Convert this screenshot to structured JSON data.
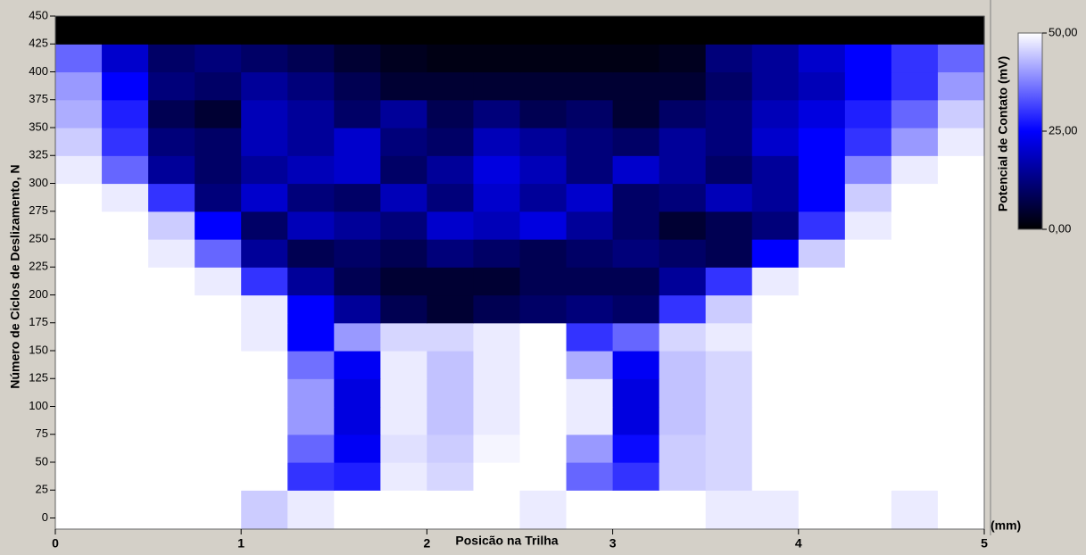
{
  "chart_data": {
    "type": "heatmap",
    "xlabel": "Posicão na Trilha",
    "xunit": "(mm)",
    "ylabel": "Número de Ciclos de Deslizamento, N",
    "colorbar_label": "Potencial de Contato (mV)",
    "x_edges": [
      0,
      0.25,
      0.5,
      0.75,
      1,
      1.25,
      1.5,
      1.75,
      2,
      2.25,
      2.5,
      2.75,
      3,
      3.25,
      3.5,
      3.75,
      4,
      4.25,
      4.5,
      4.75,
      5
    ],
    "y_edges": [
      -10,
      25,
      50,
      75,
      100,
      125,
      150,
      175,
      200,
      225,
      250,
      275,
      300,
      325,
      350,
      375,
      400,
      425,
      450
    ],
    "values": [
      [
        50,
        50,
        50,
        50,
        45,
        48,
        50,
        50,
        50,
        50,
        48,
        50,
        50,
        50,
        48,
        48,
        50,
        50,
        48,
        50
      ],
      [
        50,
        50,
        50,
        50,
        50,
        30,
        28,
        48,
        46,
        50,
        50,
        35,
        30,
        45,
        46,
        50,
        50,
        50,
        50,
        50
      ],
      [
        50,
        50,
        50,
        50,
        50,
        35,
        24,
        47,
        45,
        49,
        50,
        40,
        26,
        45,
        46,
        50,
        50,
        50,
        50,
        50
      ],
      [
        50,
        50,
        50,
        50,
        50,
        40,
        22,
        48,
        44,
        48,
        50,
        48,
        22,
        44,
        46,
        50,
        50,
        50,
        50,
        50
      ],
      [
        50,
        50,
        50,
        50,
        50,
        40,
        22,
        48,
        44,
        48,
        50,
        48,
        22,
        44,
        46,
        50,
        50,
        50,
        50,
        50
      ],
      [
        50,
        50,
        50,
        50,
        50,
        36,
        24,
        48,
        44,
        48,
        50,
        42,
        24,
        44,
        46,
        50,
        50,
        50,
        50,
        50
      ],
      [
        50,
        50,
        50,
        50,
        48,
        25,
        40,
        46,
        46,
        48,
        50,
        30,
        35,
        46,
        48,
        50,
        50,
        50,
        50,
        50
      ],
      [
        50,
        50,
        50,
        50,
        48,
        25,
        15,
        8,
        5,
        8,
        10,
        12,
        10,
        30,
        45,
        50,
        50,
        50,
        50,
        50
      ],
      [
        50,
        50,
        50,
        48,
        30,
        15,
        8,
        5,
        5,
        5,
        8,
        8,
        8,
        15,
        30,
        48,
        50,
        50,
        50,
        50
      ],
      [
        50,
        50,
        48,
        35,
        15,
        8,
        10,
        8,
        12,
        10,
        8,
        10,
        12,
        10,
        8,
        25,
        45,
        50,
        50,
        50
      ],
      [
        50,
        50,
        45,
        25,
        10,
        18,
        15,
        12,
        20,
        18,
        22,
        15,
        10,
        5,
        8,
        12,
        30,
        48,
        50,
        50
      ],
      [
        50,
        48,
        30,
        12,
        20,
        12,
        10,
        18,
        12,
        20,
        15,
        20,
        10,
        12,
        18,
        15,
        25,
        45,
        50,
        50
      ],
      [
        48,
        35,
        15,
        10,
        15,
        18,
        20,
        10,
        15,
        22,
        18,
        12,
        20,
        15,
        10,
        15,
        25,
        38,
        48,
        50
      ],
      [
        45,
        30,
        12,
        10,
        18,
        15,
        20,
        12,
        10,
        18,
        15,
        12,
        10,
        15,
        12,
        20,
        25,
        30,
        40,
        48
      ],
      [
        42,
        28,
        8,
        5,
        18,
        15,
        10,
        15,
        8,
        12,
        8,
        10,
        5,
        10,
        12,
        18,
        22,
        28,
        35,
        45
      ],
      [
        40,
        25,
        12,
        10,
        15,
        12,
        8,
        5,
        5,
        5,
        5,
        5,
        5,
        5,
        10,
        15,
        18,
        25,
        30,
        40
      ],
      [
        35,
        20,
        10,
        12,
        10,
        8,
        5,
        3,
        2,
        2,
        2,
        2,
        2,
        3,
        12,
        15,
        20,
        25,
        30,
        35
      ],
      [
        0,
        0,
        0,
        0,
        0,
        0,
        0,
        0,
        0,
        0,
        0,
        0,
        0,
        0,
        0,
        0,
        0,
        0,
        0,
        0
      ]
    ],
    "colormap": [
      "#000000",
      "#0000ff",
      "#ffffff"
    ],
    "clim": [
      0,
      50
    ],
    "cticks": [
      {
        "value": 0,
        "label": "0,00"
      },
      {
        "value": 25,
        "label": "25,00"
      },
      {
        "value": 50,
        "label": "50,00"
      }
    ],
    "xlim": [
      0,
      5
    ],
    "xticks": [
      0,
      1,
      2,
      3,
      4,
      5
    ],
    "ylim": [
      -10,
      450
    ],
    "yticks": [
      0,
      25,
      50,
      75,
      100,
      125,
      150,
      175,
      200,
      225,
      250,
      275,
      300,
      325,
      350,
      375,
      400,
      425,
      450
    ]
  }
}
